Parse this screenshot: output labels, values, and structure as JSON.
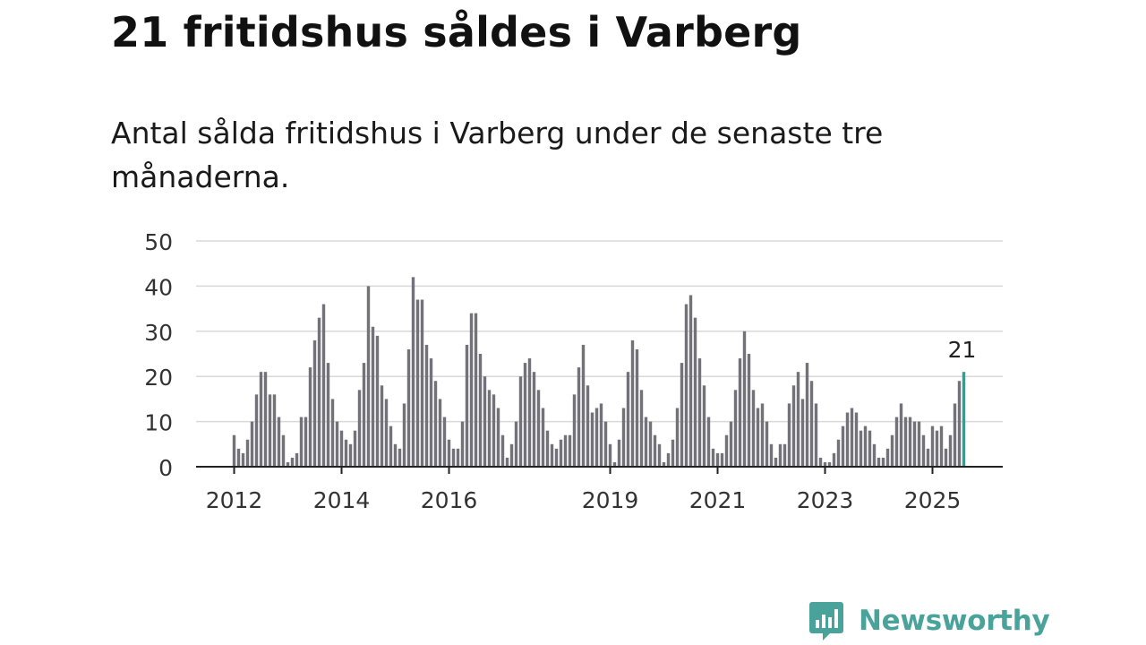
{
  "header": {
    "title": "21 fritidshus såldes i Varberg",
    "subtitle": "Antal sålda fritidshus i Varberg under de senaste tre månaderna."
  },
  "brand": {
    "name": "Newsworthy",
    "color": "#4aa39b"
  },
  "chart_data": {
    "type": "bar",
    "title": "21 fritidshus såldes i Varberg",
    "subtitle": "Antal sålda fritidshus i Varberg under de senaste tre månaderna.",
    "xlabel": "",
    "ylabel": "",
    "ylim": [
      0,
      50
    ],
    "yticks": [
      0,
      10,
      20,
      30,
      40,
      50
    ],
    "xticks": [
      "2012",
      "2014",
      "2016",
      "2019",
      "2021",
      "2023",
      "2025"
    ],
    "x_start": "2012-01",
    "x_end": "2025-09",
    "grid": true,
    "bar_color": "#737278",
    "highlight_color": "#2aa198",
    "highlight_label": "21",
    "series": [
      {
        "values": [
          7,
          4,
          3,
          6,
          10,
          16,
          21,
          21,
          16,
          16,
          11,
          7,
          1,
          2,
          3,
          11,
          11,
          22,
          28,
          33,
          36,
          23,
          15,
          10,
          8,
          6,
          5,
          8,
          17,
          23,
          40,
          31,
          29,
          18,
          15,
          9,
          5,
          4,
          14,
          26,
          42,
          37,
          37,
          27,
          24,
          19,
          15,
          11,
          6,
          4,
          4,
          10,
          27,
          34,
          34,
          25,
          20,
          17,
          16,
          13,
          7,
          2,
          5,
          10,
          20,
          23,
          24,
          21,
          17,
          13,
          8,
          5,
          4,
          6,
          7,
          7,
          16,
          22,
          27,
          18,
          12,
          13,
          14,
          10,
          5,
          1,
          6,
          13,
          21,
          28,
          26,
          17,
          11,
          10,
          7,
          5,
          1,
          3,
          6,
          13,
          23,
          36,
          38,
          33,
          24,
          18,
          11,
          4,
          3,
          3,
          7,
          10,
          17,
          24,
          30,
          25,
          17,
          13,
          14,
          10,
          5,
          2,
          5,
          5,
          14,
          18,
          21,
          15,
          23,
          19,
          14,
          2,
          1,
          1,
          3,
          6,
          9,
          12,
          13,
          12,
          8,
          9,
          8,
          5,
          2,
          2,
          4,
          7,
          11,
          14,
          11,
          11,
          10,
          10,
          7,
          4,
          9,
          8,
          9,
          4,
          7,
          14,
          19,
          21
        ]
      }
    ]
  }
}
